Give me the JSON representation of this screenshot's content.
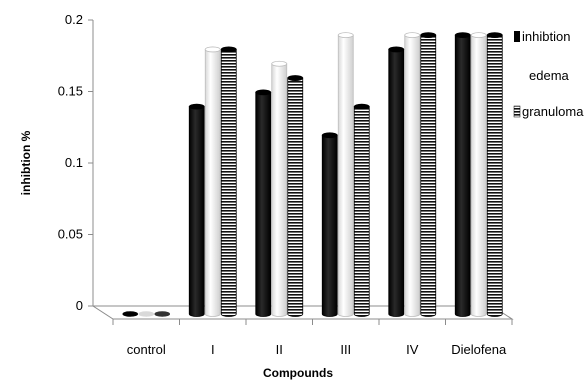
{
  "chart_data": {
    "type": "bar",
    "style": "3d-cylinder",
    "xlabel": "Compounds",
    "ylabel": "inhibtion %",
    "ylim": [
      0,
      0.2
    ],
    "yticks": [
      "0",
      "0.05",
      "0.1",
      "0.15",
      "0.2"
    ],
    "categories": [
      "control",
      "I",
      "II",
      "III",
      "IV",
      "Dielofena"
    ],
    "series": [
      {
        "name": "inhibtion",
        "color": "#000000",
        "pattern": "solid",
        "values": [
          0,
          0.145,
          0.155,
          0.125,
          0.185,
          0.195
        ]
      },
      {
        "name": "edema",
        "color": "#ffffff",
        "pattern": "white",
        "values": [
          0,
          0.185,
          0.175,
          0.195,
          0.195,
          0.195
        ]
      },
      {
        "name": "granuloma",
        "color": "#000000",
        "pattern": "stripes",
        "values": [
          0,
          0.185,
          0.165,
          0.145,
          0.195,
          0.195
        ]
      }
    ],
    "legend_position": "right",
    "grid": false
  }
}
